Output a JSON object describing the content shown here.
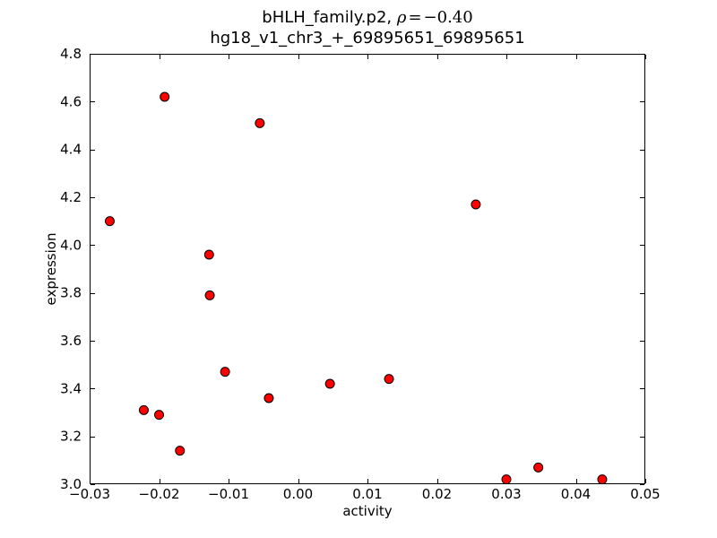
{
  "figure": {
    "background_color": "#ffffff",
    "text_color": "#000000"
  },
  "title": {
    "name": "bHLH_family.p2, ",
    "math": {
      "var": "ρ",
      "eq": "=",
      "value": "−0.40"
    },
    "line2": "hg18_v1_chr3_+_69895651_69895651"
  },
  "chart_data": {
    "type": "scatter",
    "title": "bHLH_family.p2, ρ=−0.40",
    "subtitle": "hg18_v1_chr3_+_69895651_69895651",
    "correlation_rho": -0.4,
    "xlabel": "activity",
    "ylabel": "expression",
    "xlim": [
      -0.03,
      0.05
    ],
    "ylim": [
      3.0,
      4.8
    ],
    "x_ticks": [
      -0.03,
      -0.02,
      -0.01,
      0.0,
      0.01,
      0.02,
      0.03,
      0.04,
      0.05
    ],
    "x_tick_labels": [
      "−0.03",
      "−0.02",
      "−0.01",
      "0.00",
      "0.01",
      "0.02",
      "0.03",
      "0.04",
      "0.05"
    ],
    "y_ticks": [
      3.0,
      3.2,
      3.4,
      3.6,
      3.8,
      4.0,
      4.2,
      4.4,
      4.6,
      4.8
    ],
    "y_tick_labels": [
      "3.0",
      "3.2",
      "3.4",
      "3.6",
      "3.8",
      "4.0",
      "4.2",
      "4.4",
      "4.6",
      "4.8"
    ],
    "grid": false,
    "legend": null,
    "marker": {
      "shape": "circle",
      "fill": "#ff0000",
      "edge": "#000000",
      "radius_px": 5
    },
    "points": [
      [
        -0.0271,
        4.1
      ],
      [
        -0.0192,
        4.62
      ],
      [
        -0.0222,
        3.31
      ],
      [
        -0.02,
        3.29
      ],
      [
        -0.017,
        3.14
      ],
      [
        -0.0128,
        3.96
      ],
      [
        -0.0127,
        3.79
      ],
      [
        -0.0105,
        3.47
      ],
      [
        -0.0055,
        4.51
      ],
      [
        -0.0042,
        3.36
      ],
      [
        0.0046,
        3.42
      ],
      [
        0.0131,
        3.44
      ],
      [
        0.0256,
        4.17
      ],
      [
        0.03,
        3.02
      ],
      [
        0.0346,
        3.07
      ],
      [
        0.0438,
        3.02
      ]
    ]
  }
}
